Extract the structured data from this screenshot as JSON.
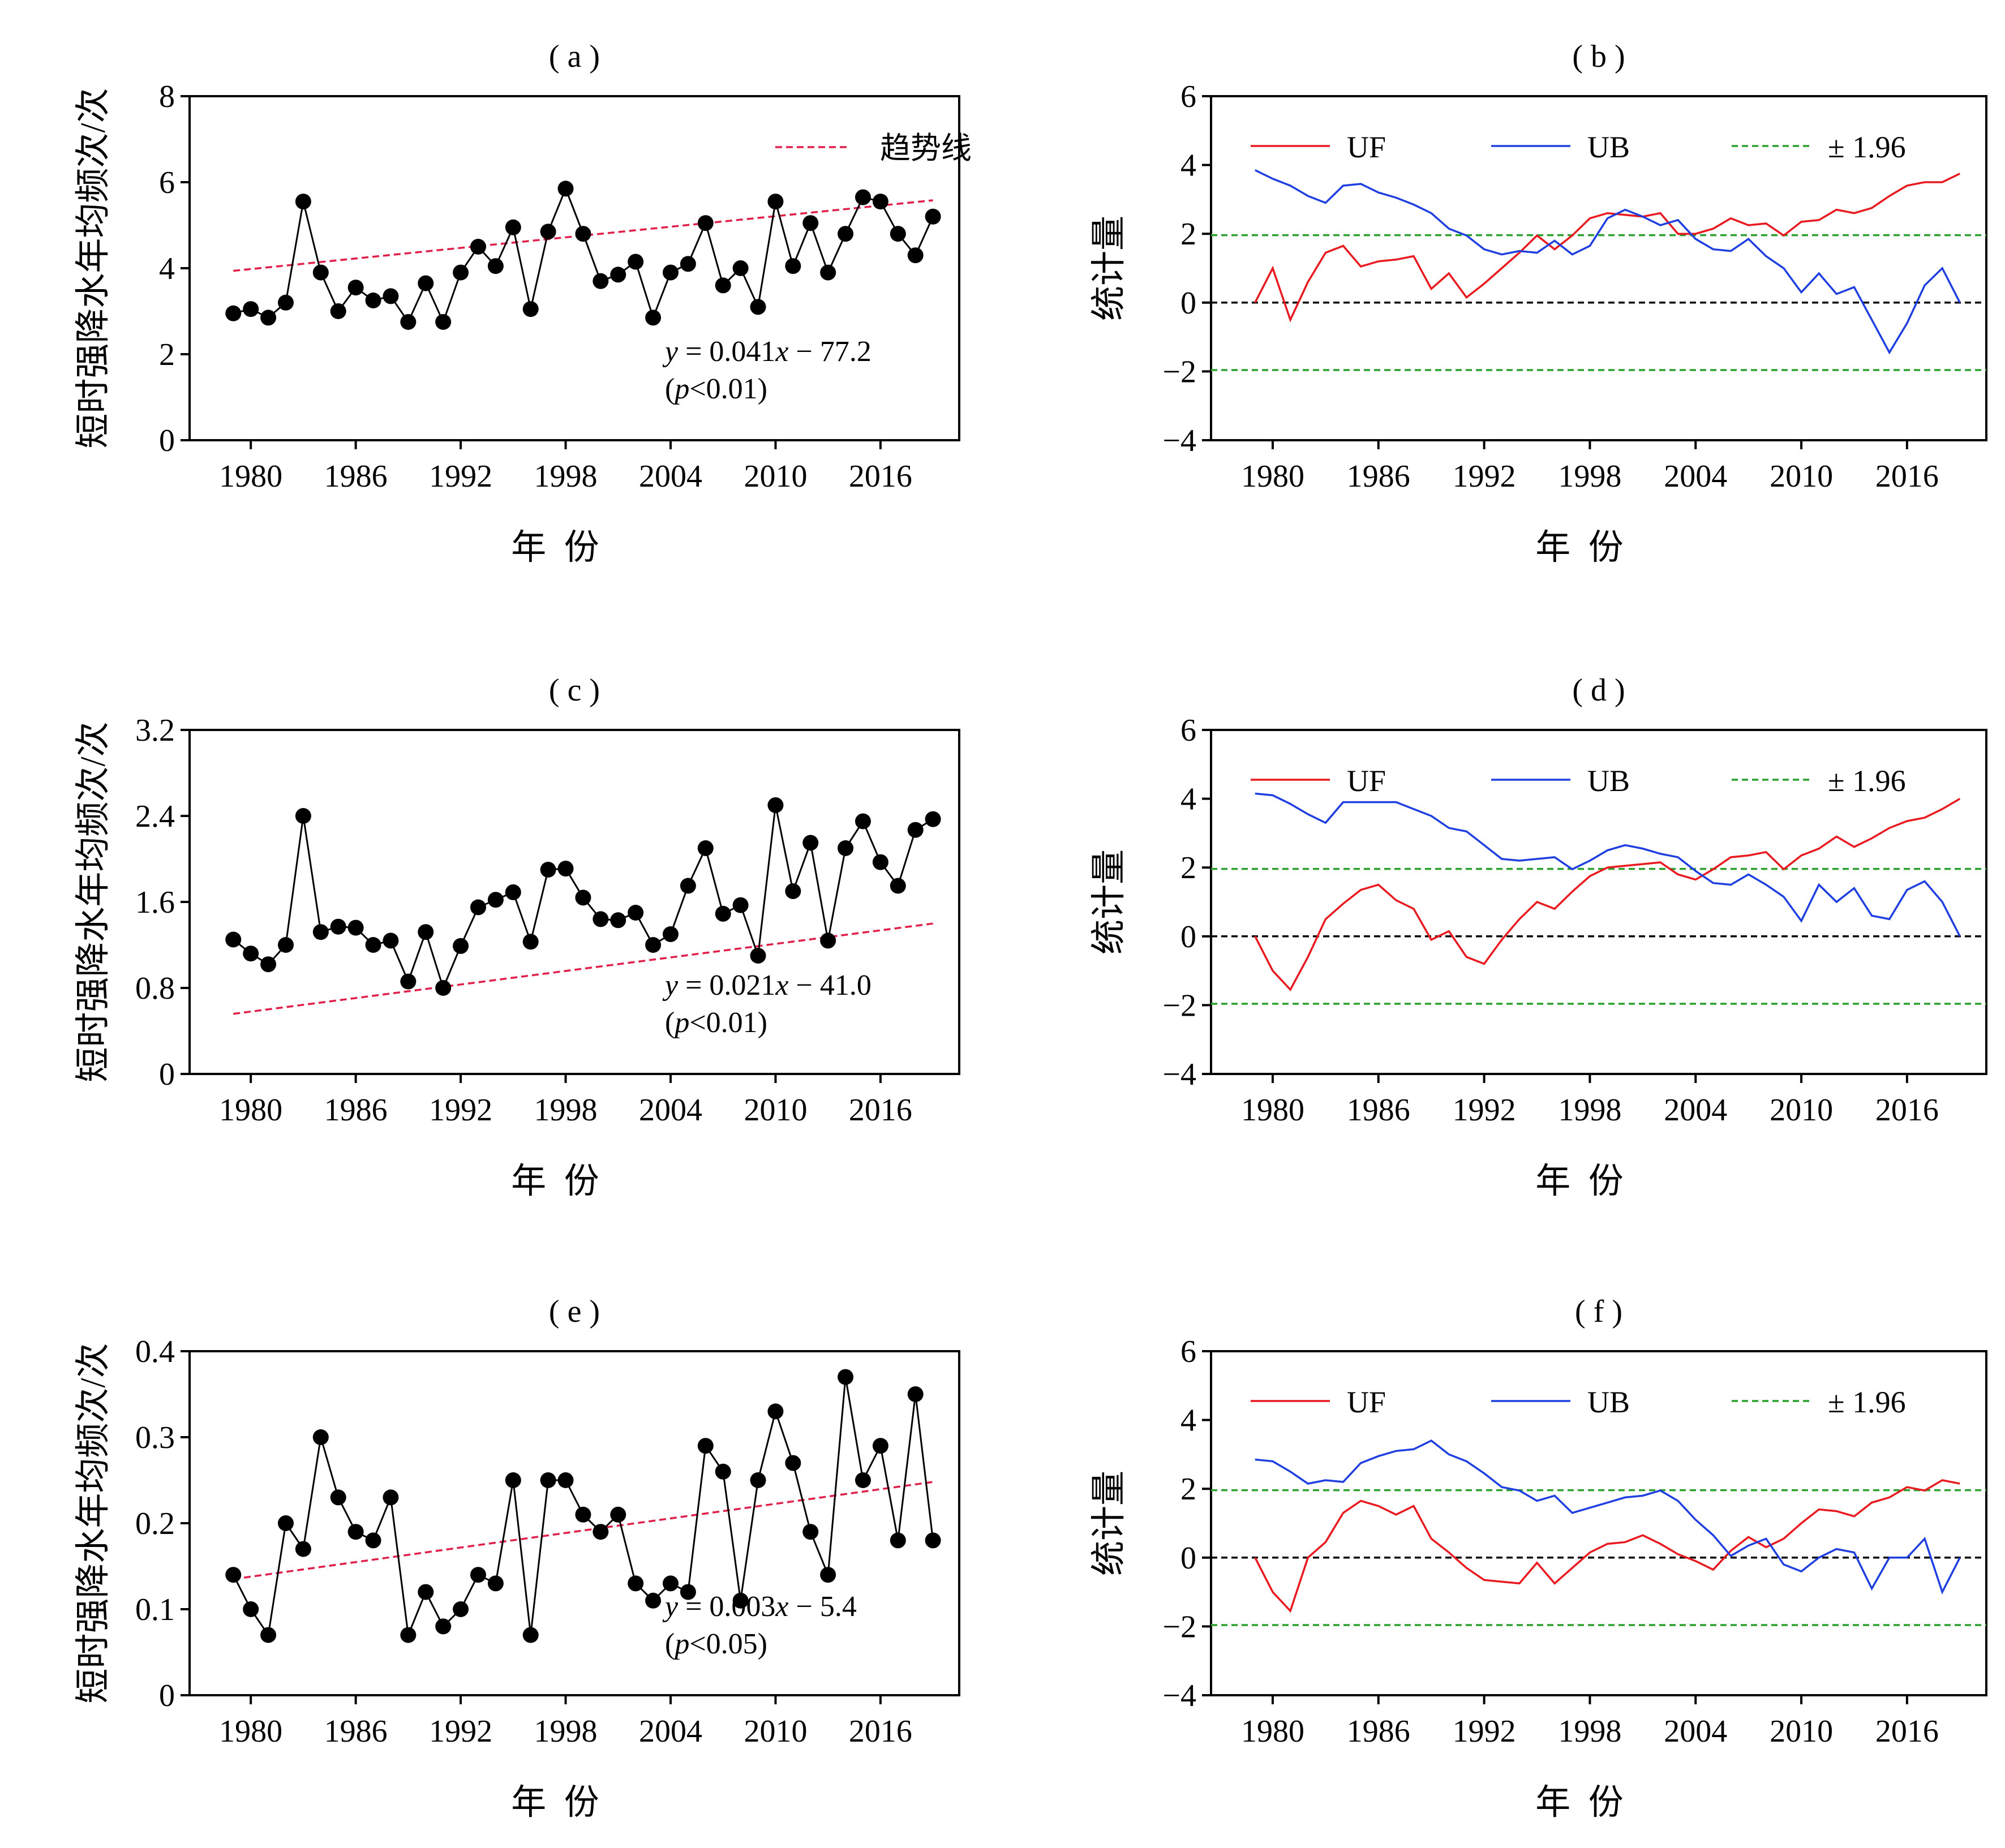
{
  "xlabel": "年 份",
  "left_ylabel": "短时强降水年均频次/次",
  "right_ylabel": "统计量",
  "trend_label": "趋势线",
  "legend": {
    "uf": "UF",
    "ub": "UB",
    "crit": "± 1.96"
  },
  "colors": {
    "points": "#000000",
    "trend": "#e0204a",
    "uf": "#e8191f",
    "ub": "#1f3fe0",
    "crit": "#2ca02c",
    "zero": "#000000"
  },
  "x_ticks": [
    1980,
    1986,
    1992,
    1998,
    2004,
    2010,
    2016
  ],
  "chart_data": [
    {
      "panel": "(a)",
      "type": "scatter",
      "title": "( a )",
      "ylim": [
        0,
        8
      ],
      "yticks": [
        "0",
        "2",
        "4",
        "6",
        "8"
      ],
      "ytick_values": [
        0,
        2,
        4,
        6,
        8
      ],
      "x": [
        1979,
        1980,
        1981,
        1982,
        1983,
        1984,
        1985,
        1986,
        1987,
        1988,
        1989,
        1990,
        1991,
        1992,
        1993,
        1994,
        1995,
        1996,
        1997,
        1998,
        1999,
        2000,
        2001,
        2002,
        2003,
        2004,
        2005,
        2006,
        2007,
        2008,
        2009,
        2010,
        2011,
        2012,
        2013,
        2014,
        2015,
        2016,
        2017,
        2018,
        2019
      ],
      "values": [
        2.95,
        3.05,
        2.85,
        3.2,
        5.55,
        3.9,
        3.0,
        3.55,
        3.25,
        3.35,
        2.75,
        3.65,
        2.75,
        3.9,
        4.5,
        4.05,
        4.95,
        3.05,
        4.85,
        5.85,
        4.8,
        3.7,
        3.85,
        4.15,
        2.85,
        3.9,
        4.1,
        5.05,
        3.6,
        4.0,
        3.1,
        5.55,
        4.05,
        5.05,
        3.9,
        4.8,
        5.65,
        5.55,
        4.8,
        4.3,
        5.2
      ],
      "trend": {
        "slope": 0.041,
        "intercept": -77.2,
        "from": 1979,
        "to": 2019
      },
      "equation": "y = 0.041x − 77.2",
      "pvalue": "(p<0.01)",
      "show_legend": true
    },
    {
      "panel": "(b)",
      "type": "line",
      "title": "( b )",
      "ylim": [
        -4,
        6
      ],
      "yticks": [
        "−4",
        "−2",
        "0",
        "2",
        "4",
        "6"
      ],
      "ytick_values": [
        -4,
        -2,
        0,
        2,
        4,
        6
      ],
      "x": [
        1979,
        1980,
        1981,
        1982,
        1983,
        1984,
        1985,
        1986,
        1987,
        1988,
        1989,
        1990,
        1991,
        1992,
        1993,
        1994,
        1995,
        1996,
        1997,
        1998,
        1999,
        2000,
        2001,
        2002,
        2003,
        2004,
        2005,
        2006,
        2007,
        2008,
        2009,
        2010,
        2011,
        2012,
        2013,
        2014,
        2015,
        2016,
        2017,
        2018,
        2019
      ],
      "series": [
        {
          "name": "UF",
          "values": [
            0.0,
            1.0,
            -0.5,
            0.6,
            1.45,
            1.65,
            1.05,
            1.2,
            1.25,
            1.35,
            0.4,
            0.85,
            0.15,
            0.55,
            1.0,
            1.45,
            1.95,
            1.55,
            1.95,
            2.45,
            2.6,
            2.55,
            2.5,
            2.6,
            2.0,
            2.0,
            2.15,
            2.45,
            2.25,
            2.3,
            1.95,
            2.35,
            2.4,
            2.7,
            2.6,
            2.75,
            3.1,
            3.4,
            3.5,
            3.5,
            3.75
          ]
        },
        {
          "name": "UB",
          "values": [
            3.85,
            3.6,
            3.4,
            3.1,
            2.9,
            3.4,
            3.45,
            3.2,
            3.05,
            2.85,
            2.6,
            2.15,
            1.95,
            1.55,
            1.4,
            1.5,
            1.45,
            1.8,
            1.4,
            1.65,
            2.45,
            2.7,
            2.5,
            2.25,
            2.4,
            1.85,
            1.55,
            1.5,
            1.85,
            1.35,
            1.0,
            0.3,
            0.85,
            0.25,
            0.45,
            -0.5,
            -1.45,
            -0.6,
            0.5,
            1.0,
            0.0
          ]
        }
      ],
      "hlines": [
        1.96,
        -1.96,
        0
      ]
    },
    {
      "panel": "(c)",
      "type": "scatter",
      "title": "( c )",
      "ylim": [
        0,
        3.2
      ],
      "yticks": [
        "0",
        "0.8",
        "1.6",
        "2.4",
        "3.2"
      ],
      "ytick_values": [
        0,
        0.8,
        1.6,
        2.4,
        3.2
      ],
      "x": [
        1979,
        1980,
        1981,
        1982,
        1983,
        1984,
        1985,
        1986,
        1987,
        1988,
        1989,
        1990,
        1991,
        1992,
        1993,
        1994,
        1995,
        1996,
        1997,
        1998,
        1999,
        2000,
        2001,
        2002,
        2003,
        2004,
        2005,
        2006,
        2007,
        2008,
        2009,
        2010,
        2011,
        2012,
        2013,
        2014,
        2015,
        2016,
        2017,
        2018,
        2019
      ],
      "values": [
        1.25,
        1.12,
        1.02,
        1.2,
        2.4,
        1.32,
        1.37,
        1.36,
        1.2,
        1.24,
        0.86,
        1.32,
        0.8,
        1.19,
        1.55,
        1.62,
        1.69,
        1.23,
        1.9,
        1.91,
        1.64,
        1.44,
        1.43,
        1.5,
        1.2,
        1.3,
        1.75,
        2.1,
        1.49,
        1.57,
        1.1,
        2.5,
        1.7,
        2.15,
        1.24,
        2.1,
        2.35,
        1.97,
        1.75,
        2.27,
        2.37
      ],
      "trend": {
        "slope": 0.021,
        "intercept": -41.0,
        "from": 1979,
        "to": 2019
      },
      "equation": "y = 0.021x − 41.0",
      "pvalue": "(p<0.01)",
      "show_legend": false
    },
    {
      "panel": "(d)",
      "type": "line",
      "title": "( d )",
      "ylim": [
        -4,
        6
      ],
      "yticks": [
        "−4",
        "−2",
        "0",
        "2",
        "4",
        "6"
      ],
      "ytick_values": [
        -4,
        -2,
        0,
        2,
        4,
        6
      ],
      "x": [
        1979,
        1980,
        1981,
        1982,
        1983,
        1984,
        1985,
        1986,
        1987,
        1988,
        1989,
        1990,
        1991,
        1992,
        1993,
        1994,
        1995,
        1996,
        1997,
        1998,
        1999,
        2000,
        2001,
        2002,
        2003,
        2004,
        2005,
        2006,
        2007,
        2008,
        2009,
        2010,
        2011,
        2012,
        2013,
        2014,
        2015,
        2016,
        2017,
        2018,
        2019
      ],
      "series": [
        {
          "name": "UF",
          "values": [
            0.0,
            -1.0,
            -1.55,
            -0.6,
            0.5,
            0.95,
            1.35,
            1.5,
            1.05,
            0.8,
            -0.1,
            0.15,
            -0.6,
            -0.8,
            -0.1,
            0.5,
            1.0,
            0.8,
            1.3,
            1.75,
            2.0,
            2.05,
            2.1,
            2.15,
            1.8,
            1.65,
            1.95,
            2.3,
            2.35,
            2.45,
            1.95,
            2.35,
            2.55,
            2.9,
            2.6,
            2.85,
            3.15,
            3.35,
            3.45,
            3.7,
            4.0
          ]
        },
        {
          "name": "UB",
          "values": [
            4.15,
            4.1,
            3.85,
            3.55,
            3.3,
            3.9,
            3.9,
            3.9,
            3.9,
            3.7,
            3.5,
            3.15,
            3.05,
            2.65,
            2.25,
            2.2,
            2.25,
            2.3,
            1.95,
            2.2,
            2.5,
            2.65,
            2.55,
            2.4,
            2.3,
            1.9,
            1.55,
            1.5,
            1.8,
            1.5,
            1.15,
            0.45,
            1.5,
            1.0,
            1.4,
            0.6,
            0.5,
            1.35,
            1.6,
            1.0,
            0.0
          ]
        }
      ],
      "hlines": [
        1.96,
        -1.96,
        0
      ]
    },
    {
      "panel": "(e)",
      "type": "scatter",
      "title": "( e )",
      "ylim": [
        0,
        0.4
      ],
      "yticks": [
        "0",
        "0.1",
        "0.2",
        "0.3",
        "0.4"
      ],
      "ytick_values": [
        0,
        0.1,
        0.2,
        0.3,
        0.4
      ],
      "x": [
        1979,
        1980,
        1981,
        1982,
        1983,
        1984,
        1985,
        1986,
        1987,
        1988,
        1989,
        1990,
        1991,
        1992,
        1993,
        1994,
        1995,
        1996,
        1997,
        1998,
        1999,
        2000,
        2001,
        2002,
        2003,
        2004,
        2005,
        2006,
        2007,
        2008,
        2009,
        2010,
        2011,
        2012,
        2013,
        2014,
        2015,
        2016,
        2017,
        2018,
        2019
      ],
      "values": [
        0.14,
        0.1,
        0.07,
        0.2,
        0.17,
        0.3,
        0.23,
        0.19,
        0.18,
        0.23,
        0.07,
        0.12,
        0.08,
        0.1,
        0.14,
        0.13,
        0.25,
        0.07,
        0.25,
        0.25,
        0.21,
        0.19,
        0.21,
        0.13,
        0.11,
        0.13,
        0.12,
        0.29,
        0.26,
        0.11,
        0.25,
        0.33,
        0.27,
        0.19,
        0.14,
        0.37,
        0.25,
        0.29,
        0.18,
        0.35,
        0.18
      ],
      "trend": {
        "slope": 0.003,
        "intercept": -5.4,
        "from": 1979,
        "to": 2019,
        "y_from": 0.135,
        "y_to": 0.248
      },
      "equation": "y = 0.003x − 5.4",
      "pvalue": "(p<0.05)",
      "show_legend": false
    },
    {
      "panel": "(f)",
      "type": "line",
      "title": "( f )",
      "ylim": [
        -4,
        6
      ],
      "yticks": [
        "−4",
        "−2",
        "0",
        "2",
        "4",
        "6"
      ],
      "ytick_values": [
        -4,
        -2,
        0,
        2,
        4,
        6
      ],
      "x": [
        1979,
        1980,
        1981,
        1982,
        1983,
        1984,
        1985,
        1986,
        1987,
        1988,
        1989,
        1990,
        1991,
        1992,
        1993,
        1994,
        1995,
        1996,
        1997,
        1998,
        1999,
        2000,
        2001,
        2002,
        2003,
        2004,
        2005,
        2006,
        2007,
        2008,
        2009,
        2010,
        2011,
        2012,
        2013,
        2014,
        2015,
        2016,
        2017,
        2018,
        2019
      ],
      "series": [
        {
          "name": "UF",
          "values": [
            0.0,
            -1.0,
            -1.55,
            0.0,
            0.45,
            1.3,
            1.65,
            1.5,
            1.25,
            1.5,
            0.55,
            0.15,
            -0.3,
            -0.65,
            -0.7,
            -0.75,
            -0.15,
            -0.75,
            -0.3,
            0.15,
            0.4,
            0.45,
            0.65,
            0.4,
            0.1,
            -0.1,
            -0.35,
            0.2,
            0.6,
            0.3,
            0.55,
            1.0,
            1.4,
            1.35,
            1.2,
            1.6,
            1.75,
            2.05,
            1.95,
            2.25,
            2.15
          ]
        },
        {
          "name": "UB",
          "values": [
            2.85,
            2.8,
            2.5,
            2.15,
            2.25,
            2.2,
            2.75,
            2.95,
            3.1,
            3.15,
            3.4,
            3.0,
            2.8,
            2.45,
            2.05,
            1.95,
            1.65,
            1.8,
            1.3,
            1.45,
            1.6,
            1.75,
            1.8,
            1.95,
            1.65,
            1.1,
            0.65,
            0.05,
            0.35,
            0.55,
            -0.2,
            -0.4,
            0.0,
            0.25,
            0.15,
            -0.9,
            0.0,
            0.0,
            0.55,
            -1.0,
            0.0
          ]
        }
      ],
      "hlines": [
        1.96,
        -1.96,
        0
      ]
    }
  ]
}
